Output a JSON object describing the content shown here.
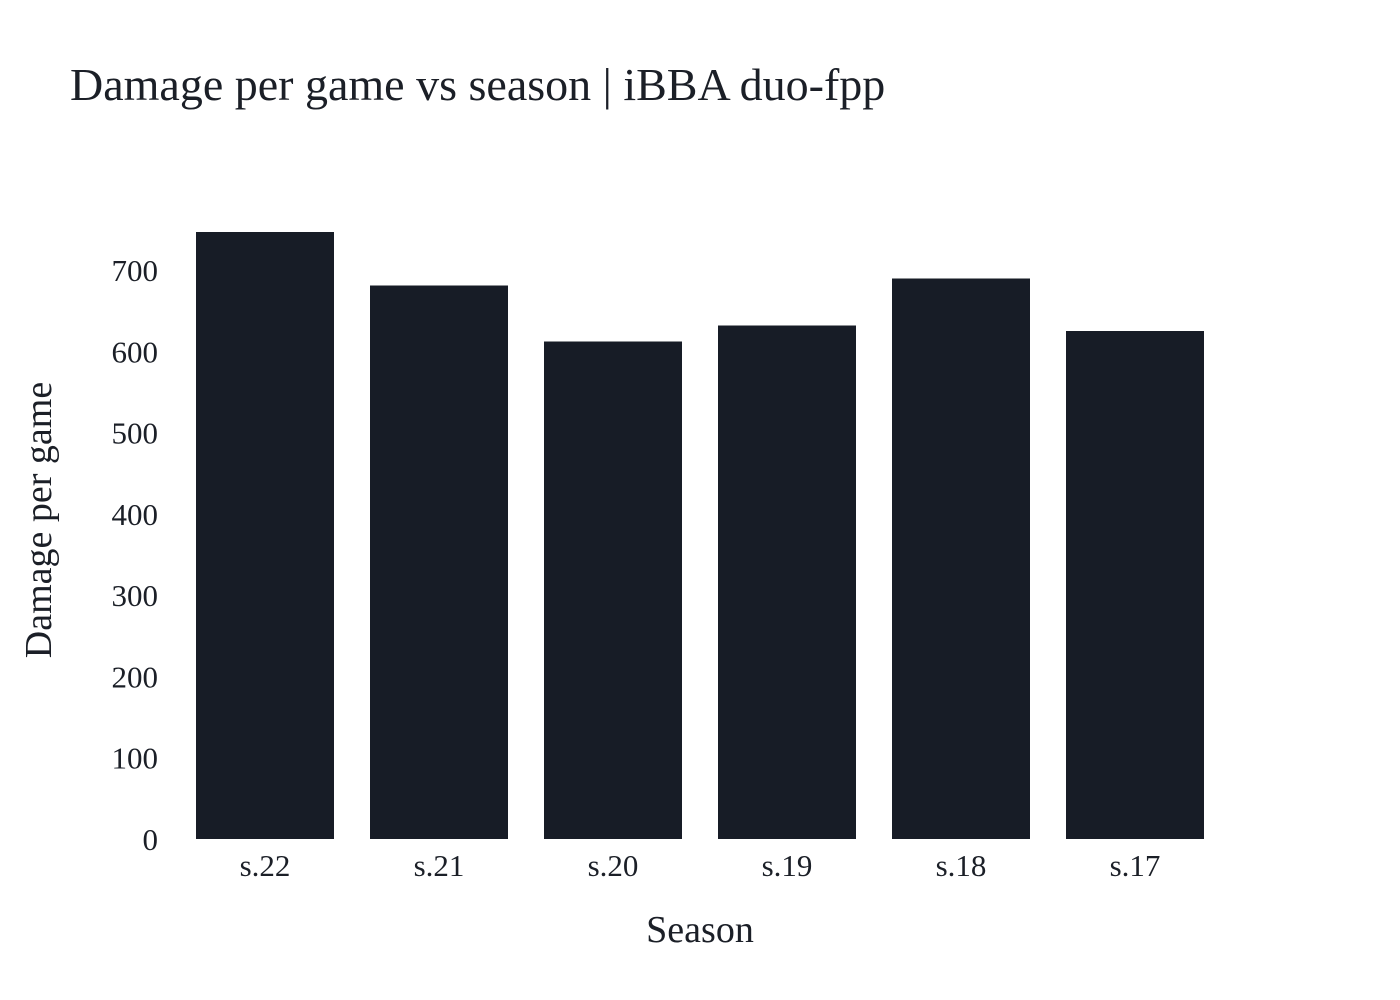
{
  "chart_data": {
    "type": "bar",
    "title": "Damage per game vs season | iBBA duo-fpp",
    "xlabel": "Season",
    "ylabel": "Damage per game",
    "categories": [
      "s.22",
      "s.21",
      "s.20",
      "s.19",
      "s.18",
      "s.17"
    ],
    "values": [
      747,
      681,
      612,
      632,
      690,
      625
    ],
    "ylim": [
      0,
      747
    ],
    "yticks": [
      0,
      100,
      200,
      300,
      400,
      500,
      600,
      700
    ],
    "grid": false,
    "colors": {
      "bar": "#171c26",
      "text": "#1b1f27",
      "background": "#ffffff"
    }
  }
}
